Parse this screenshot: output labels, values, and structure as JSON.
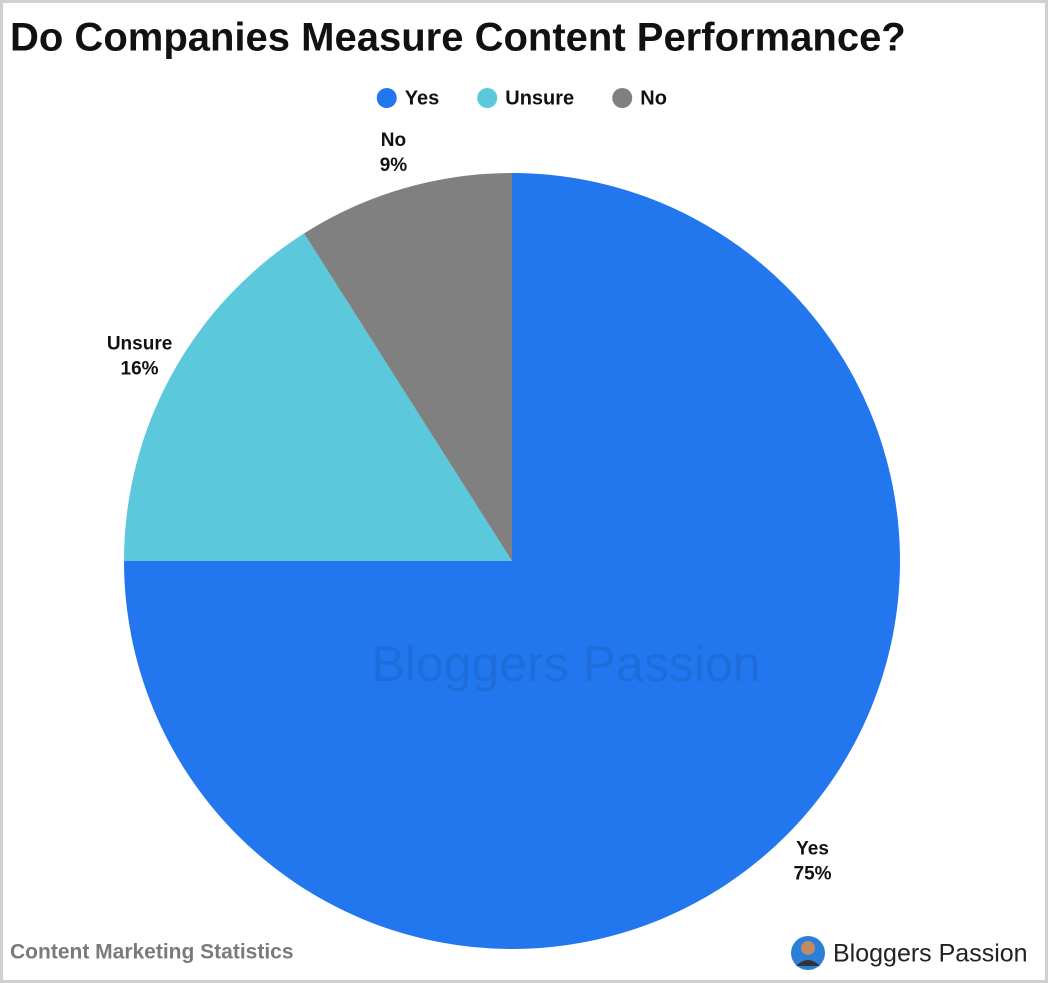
{
  "chart_data": {
    "type": "pie",
    "title": "Do Companies Measure Content Performance?",
    "categories": [
      "Yes",
      "Unsure",
      "No"
    ],
    "values": [
      75,
      16,
      9
    ],
    "value_labels": [
      "75%",
      "16%",
      "9%"
    ],
    "colors": [
      "#2277ee",
      "#5bc8dc",
      "#808080"
    ],
    "legend": "top",
    "footer": "Content Marketing Statistics",
    "brand": "Bloggers Passion"
  }
}
